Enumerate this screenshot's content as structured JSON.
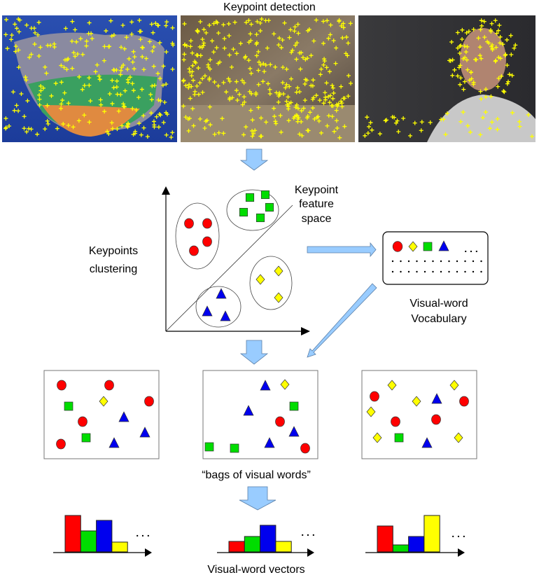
{
  "title": "Keypoint detection",
  "clustering_label": [
    "Keypoints",
    "clustering"
  ],
  "feature_space_label": [
    "Keypoint",
    "feature",
    "space"
  ],
  "vocabulary_label": [
    "Visual-word",
    "Vocabulary"
  ],
  "vocabulary_more": ". . .",
  "bags_label": "“bags of visual words”",
  "vectors_label": "Visual-word vectors",
  "histogram_more": ". . .",
  "colors": {
    "red": "#ff0000",
    "green": "#00dd00",
    "blue": "#0000ee",
    "yellow": "#ffff00",
    "keypoint_marker": "#ffff00",
    "arrow": "#99ccff"
  },
  "word_shapes": [
    "red-circle",
    "yellow-diamond",
    "green-square",
    "blue-triangle"
  ],
  "histograms": [
    {
      "values": [
        52,
        30,
        45,
        14
      ]
    },
    {
      "values": [
        15,
        22,
        38,
        15
      ]
    },
    {
      "values": [
        37,
        10,
        22,
        52
      ]
    }
  ]
}
